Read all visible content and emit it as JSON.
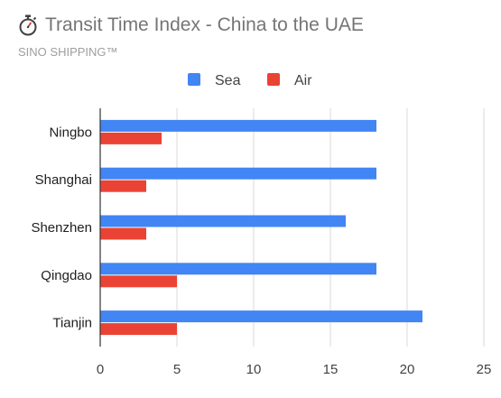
{
  "title": "Transit Time Index - China to the UAE",
  "subtitle": "SINO SHIPPING™",
  "icon": "stopwatch-icon",
  "chart_data": {
    "type": "bar",
    "orientation": "horizontal",
    "categories": [
      "Ningbo",
      "Shanghai",
      "Shenzhen",
      "Qingdao",
      "Tianjin"
    ],
    "series": [
      {
        "name": "Sea",
        "color": "#4285f4",
        "values": [
          18,
          18,
          16,
          18,
          21
        ]
      },
      {
        "name": "Air",
        "color": "#ea4335",
        "values": [
          4,
          3,
          3,
          5,
          5
        ]
      }
    ],
    "xlim": [
      0,
      25
    ],
    "xticks": [
      "0",
      "5",
      "10",
      "15",
      "20",
      "25"
    ],
    "grid": true,
    "legend": "top"
  }
}
